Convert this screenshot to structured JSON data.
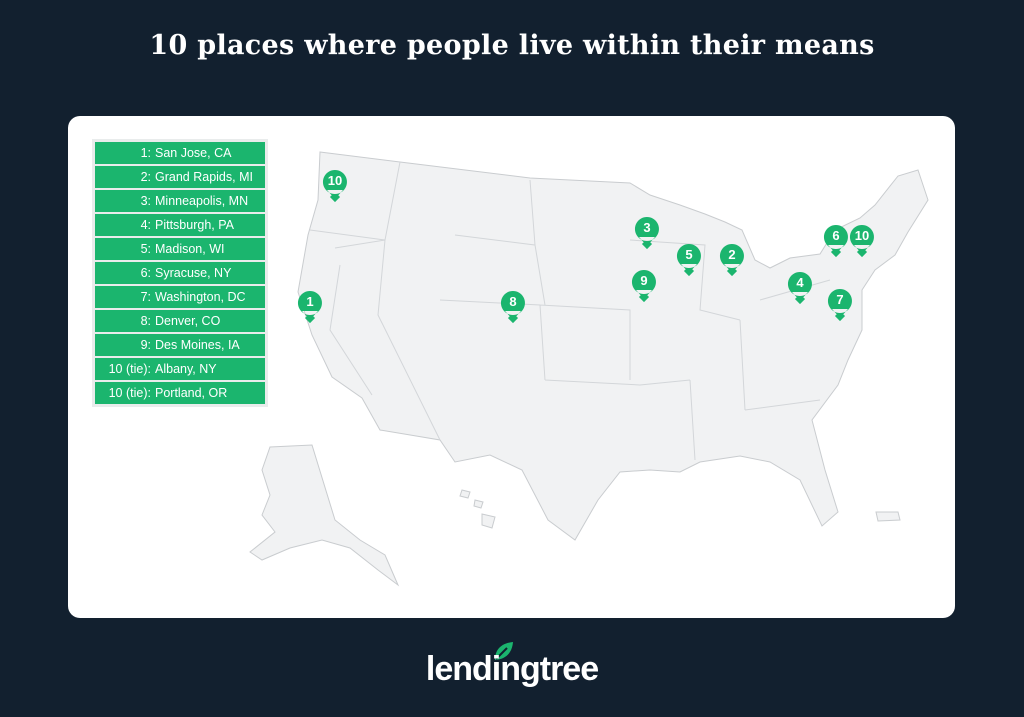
{
  "title": "10 places where people live within their means",
  "legend": [
    {
      "rank": "1:",
      "place": "San Jose, CA"
    },
    {
      "rank": "2:",
      "place": "Grand Rapids, MI"
    },
    {
      "rank": "3:",
      "place": "Minneapolis, MN"
    },
    {
      "rank": "4:",
      "place": "Pittsburgh, PA"
    },
    {
      "rank": "5:",
      "place": "Madison, WI"
    },
    {
      "rank": "6:",
      "place": "Syracuse, NY"
    },
    {
      "rank": "7:",
      "place": "Washington, DC"
    },
    {
      "rank": "8:",
      "place": "Denver, CO"
    },
    {
      "rank": "9:",
      "place": "Des Moines, IA"
    },
    {
      "rank": "10 (tie):",
      "place": "Albany, NY"
    },
    {
      "rank": "10 (tie):",
      "place": "Portland, OR"
    }
  ],
  "markers": [
    {
      "label": "1",
      "city": "San Jose, CA"
    },
    {
      "label": "2",
      "city": "Grand Rapids, MI"
    },
    {
      "label": "3",
      "city": "Minneapolis, MN"
    },
    {
      "label": "4",
      "city": "Pittsburgh, PA"
    },
    {
      "label": "5",
      "city": "Madison, WI"
    },
    {
      "label": "6",
      "city": "Syracuse, NY"
    },
    {
      "label": "7",
      "city": "Washington, DC"
    },
    {
      "label": "8",
      "city": "Denver, CO"
    },
    {
      "label": "9",
      "city": "Des Moines, IA"
    },
    {
      "label": "10",
      "city": "Albany, NY"
    },
    {
      "label": "10",
      "city": "Portland, OR"
    }
  ],
  "logo": "lendingtree",
  "colors": {
    "background": "#12202f",
    "accent": "#1bb56e",
    "land": "#f1f2f3",
    "border": "#c9cccf"
  }
}
